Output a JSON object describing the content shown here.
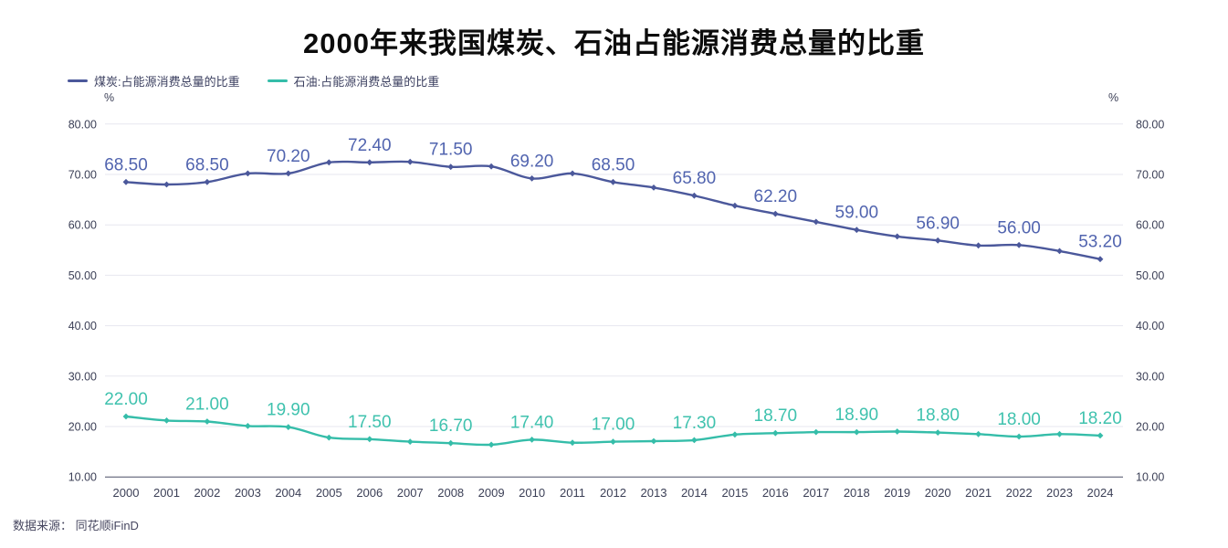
{
  "title": "2000年来我国煤炭、石油占能源消费总量的比重",
  "legend": {
    "items": [
      {
        "id": "coal",
        "label": "煤炭:占能源消费总量的比重"
      },
      {
        "id": "oil",
        "label": "石油:占能源消费总量的比重"
      }
    ]
  },
  "axes": {
    "left_unit": "%",
    "right_unit": "%",
    "y_ticks": [
      "80.00",
      "70.00",
      "60.00",
      "50.00",
      "40.00",
      "30.00",
      "20.00",
      "10.00"
    ],
    "ylim": [
      10,
      80
    ],
    "grid": "on",
    "legend_position": "top-left"
  },
  "source": {
    "text": "数据来源： 同花顺iFinD"
  },
  "colors": {
    "coal_line": "#4b589b",
    "coal_label": "#5164af",
    "oil_line": "#35bda9",
    "oil_label": "#3fc2ae",
    "axis_text": "#3c4057",
    "gridline": "#e7e7ef",
    "axis_line": "#4a4e66"
  },
  "chart_data": {
    "type": "line",
    "x": [
      2000,
      2001,
      2002,
      2003,
      2004,
      2005,
      2006,
      2007,
      2008,
      2009,
      2010,
      2011,
      2012,
      2013,
      2014,
      2015,
      2016,
      2017,
      2018,
      2019,
      2020,
      2021,
      2022,
      2023,
      2024
    ],
    "ylim": [
      10,
      80
    ],
    "series": [
      {
        "name": "煤炭:占能源消费总量的比重",
        "color": "#4b589b",
        "label_color": "#5164af",
        "values": [
          68.5,
          68.0,
          68.5,
          70.2,
          70.2,
          72.4,
          72.4,
          72.5,
          71.5,
          71.6,
          69.2,
          70.2,
          68.5,
          67.4,
          65.8,
          63.8,
          62.2,
          60.6,
          59.0,
          57.7,
          56.9,
          55.9,
          56.0,
          54.8,
          53.2
        ],
        "point_labels": [
          {
            "year": 2000,
            "text": "68.50"
          },
          {
            "year": 2002,
            "text": "68.50"
          },
          {
            "year": 2004,
            "text": "70.20"
          },
          {
            "year": 2006,
            "text": "72.40"
          },
          {
            "year": 2008,
            "text": "71.50"
          },
          {
            "year": 2010,
            "text": "69.20"
          },
          {
            "year": 2012,
            "text": "68.50"
          },
          {
            "year": 2014,
            "text": "65.80"
          },
          {
            "year": 2016,
            "text": "62.20"
          },
          {
            "year": 2018,
            "text": "59.00"
          },
          {
            "year": 2020,
            "text": "56.90"
          },
          {
            "year": 2022,
            "text": "56.00"
          },
          {
            "year": 2024,
            "text": "53.20"
          }
        ]
      },
      {
        "name": "石油:占能源消费总量的比重",
        "color": "#35bda9",
        "label_color": "#3fc2ae",
        "values": [
          22.0,
          21.2,
          21.0,
          20.1,
          19.9,
          17.8,
          17.5,
          17.0,
          16.7,
          16.4,
          17.4,
          16.8,
          17.0,
          17.1,
          17.3,
          18.4,
          18.7,
          18.9,
          18.9,
          19.0,
          18.8,
          18.5,
          18.0,
          18.5,
          18.2
        ],
        "point_labels": [
          {
            "year": 2000,
            "text": "22.00"
          },
          {
            "year": 2002,
            "text": "21.00"
          },
          {
            "year": 2004,
            "text": "19.90"
          },
          {
            "year": 2006,
            "text": "17.50"
          },
          {
            "year": 2008,
            "text": "16.70"
          },
          {
            "year": 2010,
            "text": "17.40"
          },
          {
            "year": 2012,
            "text": "17.00"
          },
          {
            "year": 2014,
            "text": "17.30"
          },
          {
            "year": 2016,
            "text": "18.70"
          },
          {
            "year": 2018,
            "text": "18.90"
          },
          {
            "year": 2020,
            "text": "18.80"
          },
          {
            "year": 2022,
            "text": "18.00"
          },
          {
            "year": 2024,
            "text": "18.20"
          }
        ]
      }
    ]
  }
}
